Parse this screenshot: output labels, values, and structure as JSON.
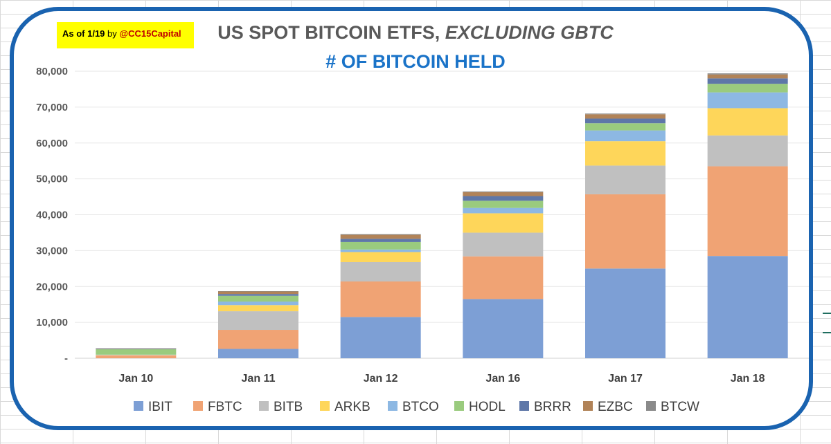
{
  "note": {
    "as_of": "As of 1/19",
    "by": "by",
    "handle": "@CC15Capital"
  },
  "header": {
    "title_main": "US SPOT BITCOIN ETFS, ",
    "title_em": "EXCLUDING GBTC",
    "subtitle": "# OF BITCOIN HELD"
  },
  "chart_data": {
    "type": "bar",
    "stacked": true,
    "title": "US SPOT BITCOIN ETFS, EXCLUDING GBTC",
    "subtitle": "# OF BITCOIN HELD",
    "xlabel": "",
    "ylabel": "",
    "ylim": [
      0,
      80000
    ],
    "yticks": [
      0,
      10000,
      20000,
      30000,
      40000,
      50000,
      60000,
      70000,
      80000
    ],
    "ytick_labels": [
      "-",
      "10,000",
      "20,000",
      "30,000",
      "40,000",
      "50,000",
      "60,000",
      "70,000",
      "80,000"
    ],
    "grid": true,
    "legend_position": "bottom",
    "categories": [
      "Jan 10",
      "Jan 11",
      "Jan 12",
      "Jan 16",
      "Jan 17",
      "Jan 18"
    ],
    "series": [
      {
        "name": "IBIT",
        "color": "#7d9fd5",
        "values": [
          0,
          2600,
          11500,
          16500,
          25000,
          28500
        ]
      },
      {
        "name": "FBTC",
        "color": "#f0a374",
        "values": [
          800,
          5300,
          9900,
          11900,
          20700,
          25000
        ]
      },
      {
        "name": "BITB",
        "color": "#c0c0c0",
        "values": [
          100,
          5200,
          5400,
          6600,
          8000,
          8600
        ]
      },
      {
        "name": "ARKB",
        "color": "#fed65a",
        "values": [
          50,
          1700,
          2800,
          5400,
          6800,
          7600
        ]
      },
      {
        "name": "BTCO",
        "color": "#8db8e3",
        "values": [
          50,
          1000,
          700,
          1500,
          3000,
          4400
        ]
      },
      {
        "name": "HODL",
        "color": "#9acb7e",
        "values": [
          1500,
          1600,
          2100,
          2000,
          2000,
          2400
        ]
      },
      {
        "name": "BRRR",
        "color": "#5e77a8",
        "values": [
          150,
          500,
          900,
          1300,
          1300,
          1500
        ]
      },
      {
        "name": "EZBC",
        "color": "#b18358",
        "values": [
          100,
          700,
          1100,
          1100,
          1200,
          1100
        ]
      },
      {
        "name": "BTCW",
        "color": "#8a8a8a",
        "values": [
          50,
          100,
          200,
          200,
          200,
          300
        ]
      }
    ]
  }
}
